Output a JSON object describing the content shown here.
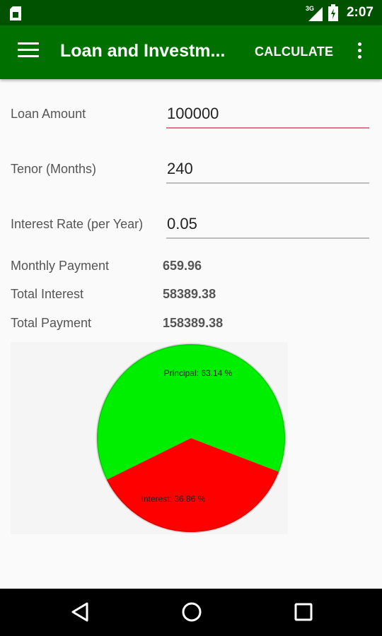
{
  "status_bar": {
    "time": "2:07",
    "network": "3G"
  },
  "app_bar": {
    "title": "Loan and Investm...",
    "action_label": "CALCULATE"
  },
  "form": {
    "loan_amount": {
      "label": "Loan Amount",
      "value": "100000"
    },
    "tenor": {
      "label": "Tenor (Months)",
      "value": "240"
    },
    "interest_rate": {
      "label": "Interest Rate (per Year)",
      "value": "0.05"
    }
  },
  "results": {
    "monthly_payment": {
      "label": "Monthly Payment",
      "value": "659.96"
    },
    "total_interest": {
      "label": "Total Interest",
      "value": "58389.38"
    },
    "total_payment": {
      "label": "Total Payment",
      "value": "158389.38"
    }
  },
  "chart_data": {
    "type": "pie",
    "slices": [
      {
        "label": "Principal: 63.14 %",
        "value": 63.14,
        "color": "#00ee00"
      },
      {
        "label": "Interest: 36.86 %",
        "value": 36.86,
        "color": "#ff0000"
      }
    ]
  },
  "colors": {
    "app_bar": "#007000",
    "status_bar": "#005200",
    "focus_underline": "#e8708f"
  }
}
